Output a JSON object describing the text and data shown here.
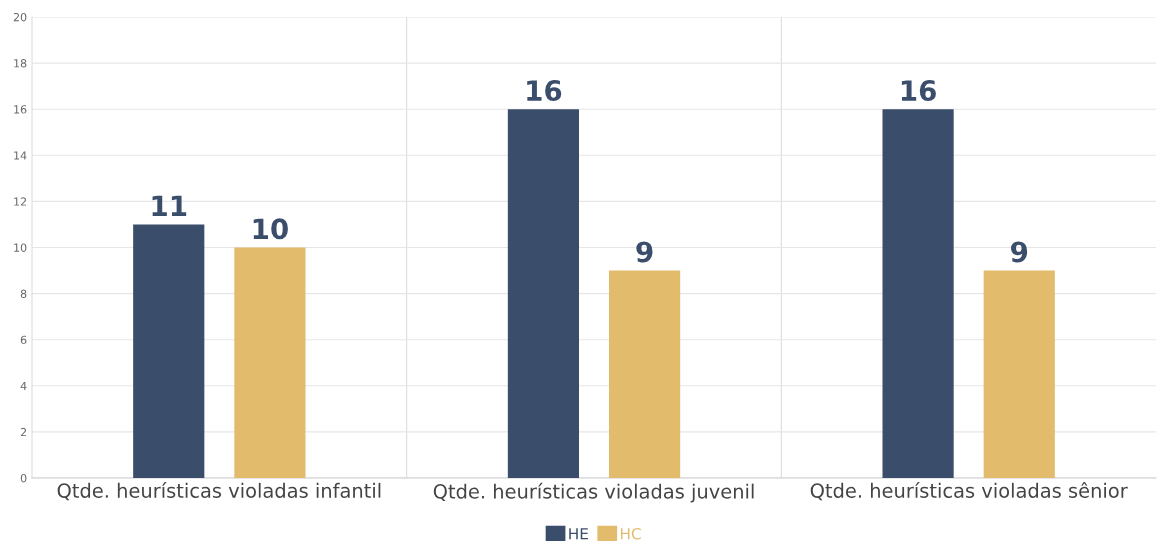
{
  "chart_data": {
    "type": "bar",
    "categories": [
      "Qtde. heurísticas violadas infantil",
      "Qtde. heurísticas violadas juvenil",
      "Qtde. heurísticas violadas sênior"
    ],
    "series": [
      {
        "name": "HE",
        "color": "#3a4d6b",
        "values": [
          11,
          16,
          16
        ]
      },
      {
        "name": "HC",
        "color": "#e3bb6c",
        "values": [
          10,
          9,
          9
        ]
      }
    ],
    "ylim": [
      0,
      20
    ],
    "yticks": [
      0,
      2,
      4,
      6,
      8,
      10,
      12,
      14,
      16,
      18,
      20
    ],
    "grid": true,
    "legend": "bottom",
    "data_labels": true
  }
}
